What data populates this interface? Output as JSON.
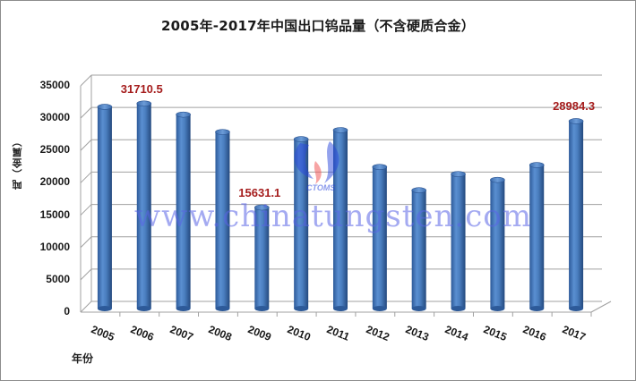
{
  "chart_data": {
    "type": "bar",
    "style": "3d-cylinder",
    "title": "2005年-2017年中国出口钨品量（不含硬质合金）",
    "xlabel": "年份",
    "ylabel": "吨（金属）",
    "categories": [
      "2005",
      "2006",
      "2007",
      "2008",
      "2009",
      "2010",
      "2011",
      "2012",
      "2013",
      "2014",
      "2015",
      "2016",
      "2017"
    ],
    "series": [
      {
        "name": "出口钨品量",
        "color": "#4a7ebf",
        "values": [
          31200,
          31710.5,
          30000,
          27300,
          15631.1,
          26200,
          27600,
          21900,
          18300,
          20800,
          19900,
          22200,
          28984.3
        ]
      }
    ],
    "data_labels": [
      {
        "category": "2006",
        "text": "31710.5"
      },
      {
        "category": "2009",
        "text": "15631.1"
      },
      {
        "category": "2017",
        "text": "28984.3"
      }
    ],
    "ylim": [
      0,
      35000
    ],
    "yticks": [
      "0",
      "5000",
      "10000",
      "15000",
      "20000",
      "25000",
      "30000",
      "35000"
    ],
    "grid": true,
    "legend": "none",
    "watermark": "www.chinatungsten.com",
    "watermark_logo_text": "CTOMS"
  }
}
